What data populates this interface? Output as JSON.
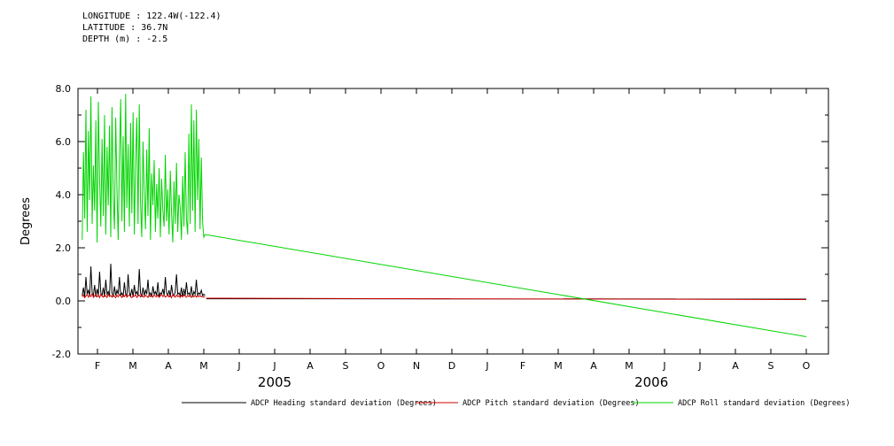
{
  "header": {
    "longitude": "LONGITUDE : 122.4W(-122.4)",
    "latitude": "LATITUDE : 36.7N",
    "depth": "DEPTH (m) : -2.5"
  },
  "chart_data": {
    "type": "line",
    "title": "",
    "xlabel": "",
    "ylabel": "Degrees",
    "ylim": [
      -2.0,
      8.0
    ],
    "yticks_major": [
      -2.0,
      0.0,
      2.0,
      4.0,
      6.0,
      8.0
    ],
    "ytick_labels": [
      "-2.0",
      "0.0",
      "2.0",
      "4.0",
      "6.0",
      "8.0"
    ],
    "yticks_minor": [
      -1.0,
      1.0,
      3.0,
      5.0,
      7.0
    ],
    "xlim": [
      0,
      21.175
    ],
    "xticks": [
      0.55,
      1.55,
      2.55,
      3.55,
      4.55,
      5.55,
      6.55,
      7.55,
      8.55,
      9.55,
      10.55,
      11.55,
      12.55,
      13.55,
      14.55,
      15.55,
      16.55,
      17.55,
      18.55,
      19.55,
      20.55
    ],
    "xtick_labels": [
      "F",
      "M",
      "A",
      "M",
      "J",
      "J",
      "A",
      "S",
      "O",
      "N",
      "D",
      "J",
      "F",
      "M",
      "A",
      "M",
      "J",
      "J",
      "A",
      "S",
      "O"
    ],
    "year_labels": [
      {
        "label": "2005",
        "x": 5.55
      },
      {
        "label": "2006",
        "x": 16.18
      }
    ],
    "grid": false,
    "legend_position": "bottom",
    "legend": [
      {
        "label": "ADCP Heading standard deviation (Degrees)",
        "color": "#000000"
      },
      {
        "label": "ADCP Pitch standard deviation (Degrees)",
        "color": "#cc0000"
      },
      {
        "label": "ADCP Roll standard deviation (Degrees)",
        "color": "#00d400"
      }
    ],
    "series": [
      {
        "name": "heading",
        "color": "#000000",
        "noisy": {
          "x_start": 0.12,
          "x_step": 0.035,
          "y": [
            0.2,
            0.5,
            0.15,
            0.9,
            0.25,
            0.4,
            0.18,
            1.3,
            0.3,
            0.2,
            0.6,
            0.15,
            0.45,
            0.2,
            1.1,
            0.3,
            0.2,
            0.5,
            0.15,
            0.8,
            0.25,
            0.35,
            0.2,
            1.4,
            0.3,
            0.15,
            0.55,
            0.2,
            0.4,
            0.25,
            0.9,
            0.2,
            0.3,
            0.15,
            0.7,
            0.25,
            0.2,
            1.0,
            0.3,
            0.2,
            0.45,
            0.15,
            0.6,
            0.25,
            0.35,
            0.2,
            1.2,
            0.3,
            0.15,
            0.5,
            0.2,
            0.4,
            0.25,
            0.8,
            0.2,
            0.3,
            0.15,
            0.55,
            0.25,
            0.35,
            0.2,
            0.7,
            0.15,
            0.3,
            0.25,
            0.45,
            0.2,
            0.9,
            0.3,
            0.2,
            0.4,
            0.15,
            0.6,
            0.25,
            0.2,
            0.35,
            1.0,
            0.25,
            0.3,
            0.2,
            0.5,
            0.15,
            0.45,
            0.2,
            0.7,
            0.25,
            0.3,
            0.2,
            0.55,
            0.15,
            0.35,
            0.25,
            0.8,
            0.2,
            0.3,
            0.25,
            0.4,
            0.2,
            0.25,
            0.2
          ]
        },
        "tail": [
          [
            3.62,
            0.08
          ],
          [
            20.55,
            0.07
          ]
        ]
      },
      {
        "name": "pitch",
        "color": "#cc0000",
        "noisy": {
          "x_start": 0.12,
          "x_step": 0.035,
          "y": [
            0.15,
            0.22,
            0.12,
            0.18,
            0.25,
            0.14,
            0.2,
            0.16,
            0.28,
            0.13,
            0.19,
            0.24,
            0.15,
            0.21,
            0.12,
            0.26,
            0.17,
            0.14,
            0.22,
            0.18,
            0.13,
            0.25,
            0.16,
            0.2,
            0.14,
            0.23,
            0.17,
            0.12,
            0.21,
            0.15,
            0.24,
            0.18,
            0.13,
            0.22,
            0.16,
            0.25,
            0.14,
            0.19,
            0.23,
            0.15,
            0.12,
            0.2,
            0.17,
            0.24,
            0.13,
            0.18,
            0.22,
            0.15,
            0.25,
            0.16,
            0.14,
            0.21,
            0.18,
            0.13,
            0.23,
            0.16,
            0.2,
            0.14,
            0.24,
            0.17,
            0.15,
            0.22,
            0.13,
            0.19,
            0.25,
            0.16,
            0.21,
            0.14,
            0.18,
            0.23,
            0.15,
            0.2,
            0.12,
            0.24,
            0.17,
            0.14,
            0.22,
            0.16,
            0.19,
            0.13,
            0.21,
            0.15,
            0.23,
            0.17,
            0.14,
            0.2,
            0.16,
            0.22,
            0.13,
            0.18,
            0.15,
            0.21,
            0.14,
            0.19,
            0.16,
            0.2,
            0.15,
            0.17,
            0.14,
            0.16
          ]
        },
        "tail": [
          [
            3.62,
            0.1
          ],
          [
            20.55,
            0.05
          ]
        ]
      },
      {
        "name": "roll",
        "color": "#00d400",
        "noisy": {
          "x_start": 0.12,
          "x_step": 0.035,
          "y": [
            2.3,
            5.6,
            3.1,
            7.2,
            2.6,
            6.4,
            3.8,
            7.7,
            2.9,
            5.1,
            3.4,
            6.8,
            2.2,
            7.5,
            4.6,
            2.8,
            6.1,
            3.2,
            7.0,
            2.5,
            5.8,
            3.6,
            6.6,
            2.4,
            7.3,
            3.9,
            2.7,
            6.9,
            4.2,
            2.3,
            5.4,
            7.6,
            3.0,
            6.2,
            2.6,
            7.8,
            3.5,
            5.9,
            2.8,
            6.7,
            3.3,
            7.1,
            2.5,
            5.2,
            6.9,
            2.9,
            7.4,
            3.7,
            2.4,
            6.0,
            4.1,
            2.7,
            5.7,
            3.2,
            6.5,
            2.3,
            4.8,
            3.6,
            5.3,
            2.6,
            4.4,
            3.1,
            5.0,
            2.4,
            4.6,
            3.4,
            2.8,
            5.5,
            3.0,
            4.2,
            2.5,
            4.9,
            3.3,
            2.2,
            4.5,
            2.9,
            5.2,
            2.6,
            4.0,
            3.5,
            2.3,
            4.7,
            2.8,
            5.6,
            3.1,
            2.5,
            6.3,
            2.9,
            7.4,
            3.4,
            6.8,
            2.6,
            7.2,
            3.8,
            6.1,
            2.7,
            5.4,
            3.0,
            2.4,
            2.5
          ]
        },
        "tail": [
          [
            3.585,
            2.5
          ],
          [
            20.55,
            -1.35
          ]
        ]
      }
    ]
  }
}
